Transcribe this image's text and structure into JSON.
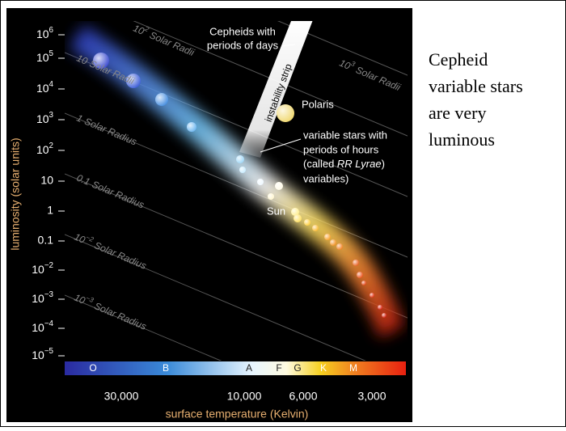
{
  "figure": {
    "y_axis_label": "luminosity (solar units)",
    "x_axis_label": "surface temperature (Kelvin)",
    "y_ticks": [
      {
        "base": "10",
        "exp": "6"
      },
      {
        "base": "10",
        "exp": "5"
      },
      {
        "base": "10",
        "exp": "4"
      },
      {
        "base": "10",
        "exp": "3"
      },
      {
        "base": "10",
        "exp": "2"
      },
      "10",
      "1",
      "0.1",
      {
        "base": "10",
        "exp": "−2"
      },
      {
        "base": "10",
        "exp": "−3"
      },
      {
        "base": "10",
        "exp": "−4"
      },
      {
        "base": "10",
        "exp": "−5"
      }
    ],
    "x_ticks": [
      "30,000",
      "10,000",
      "6,000",
      "3,000"
    ],
    "spectral_classes": [
      "O",
      "B",
      "A",
      "F",
      "G",
      "K",
      "M"
    ],
    "radius_labels": [
      {
        "base": "10",
        "exp": "3",
        "unit": "Solar Radii"
      },
      {
        "base": "10",
        "exp": "2",
        "unit": "Solar Radii"
      },
      {
        "base": "10",
        "unit": "Solar Radii"
      },
      {
        "base": "1",
        "unit": "Solar Radius"
      },
      {
        "base": "0.1",
        "unit": "Solar Radius"
      },
      {
        "base": "10",
        "exp": "−2",
        "unit": "Solar Radius"
      },
      {
        "base": "10",
        "exp": "−3",
        "unit": "Solar Radius"
      }
    ],
    "annotations": {
      "cepheids": [
        "Cepheids with",
        "periods of days"
      ],
      "strip": "instability strip",
      "polaris": "Polaris",
      "rr_lyrae": [
        "variable stars with",
        "periods of hours",
        "(called ",
        "RR Lyrae",
        ")",
        "variables)"
      ],
      "sun": "Sun"
    }
  },
  "caption": [
    "Cepheid",
    "variable stars",
    "are very",
    "luminous"
  ]
}
